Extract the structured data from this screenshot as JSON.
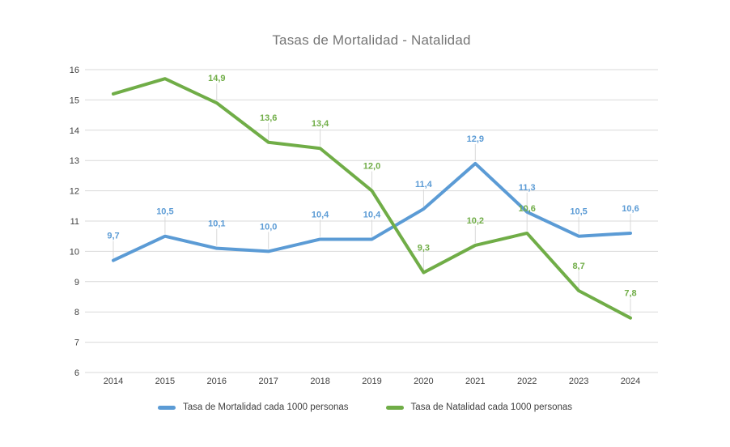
{
  "title": "Tasas de Mortalidad - Natalidad",
  "colors": {
    "mortalidad": "#5B9BD5",
    "natalidad": "#70AD47",
    "gridline": "#D9D9D9",
    "leader_line": "#D9D9D9",
    "axis_text": "#404040",
    "title_text": "#757575",
    "legend_text": "#404040",
    "background": "#FFFFFF"
  },
  "chart_data": {
    "type": "line",
    "title": "Tasas de Mortalidad - Natalidad",
    "xlabel": "",
    "ylabel": "",
    "categories": [
      "2014",
      "2015",
      "2016",
      "2017",
      "2018",
      "2019",
      "2020",
      "2021",
      "2022",
      "2023",
      "2024"
    ],
    "series": [
      {
        "name": "Tasa de Mortalidad cada 1000 personas",
        "color_key": "mortalidad",
        "values": [
          9.7,
          10.5,
          10.1,
          10.0,
          10.4,
          10.4,
          11.4,
          12.9,
          11.3,
          10.5,
          10.6
        ],
        "point_labels": [
          "9,7",
          "10,5",
          "10,1",
          "10,0",
          "10,4",
          "10,4",
          "11,4",
          "12,9",
          "11,3",
          "10,5",
          "10,6"
        ]
      },
      {
        "name": "Tasa de Natalidad cada 1000 personas",
        "color_key": "natalidad",
        "values": [
          15.2,
          15.7,
          14.9,
          13.6,
          13.4,
          12.0,
          9.3,
          10.2,
          10.6,
          8.7,
          7.8
        ],
        "point_labels": [
          "",
          "",
          "14,9",
          "13,6",
          "13,4",
          "12,0",
          "9,3",
          "10,2",
          "10,6",
          "8,7",
          "7,8"
        ]
      }
    ],
    "ylim": [
      6,
      16
    ],
    "ytick_labels": [
      "6",
      "7",
      "8",
      "9",
      "10",
      "11",
      "12",
      "13",
      "14",
      "15",
      "16"
    ],
    "grid": true,
    "legend_position": "bottom"
  },
  "legend": {
    "items": [
      {
        "label": "Tasa de Mortalidad cada 1000 personas",
        "color_key": "mortalidad"
      },
      {
        "label": "Tasa de Natalidad cada 1000 personas",
        "color_key": "natalidad"
      }
    ]
  }
}
